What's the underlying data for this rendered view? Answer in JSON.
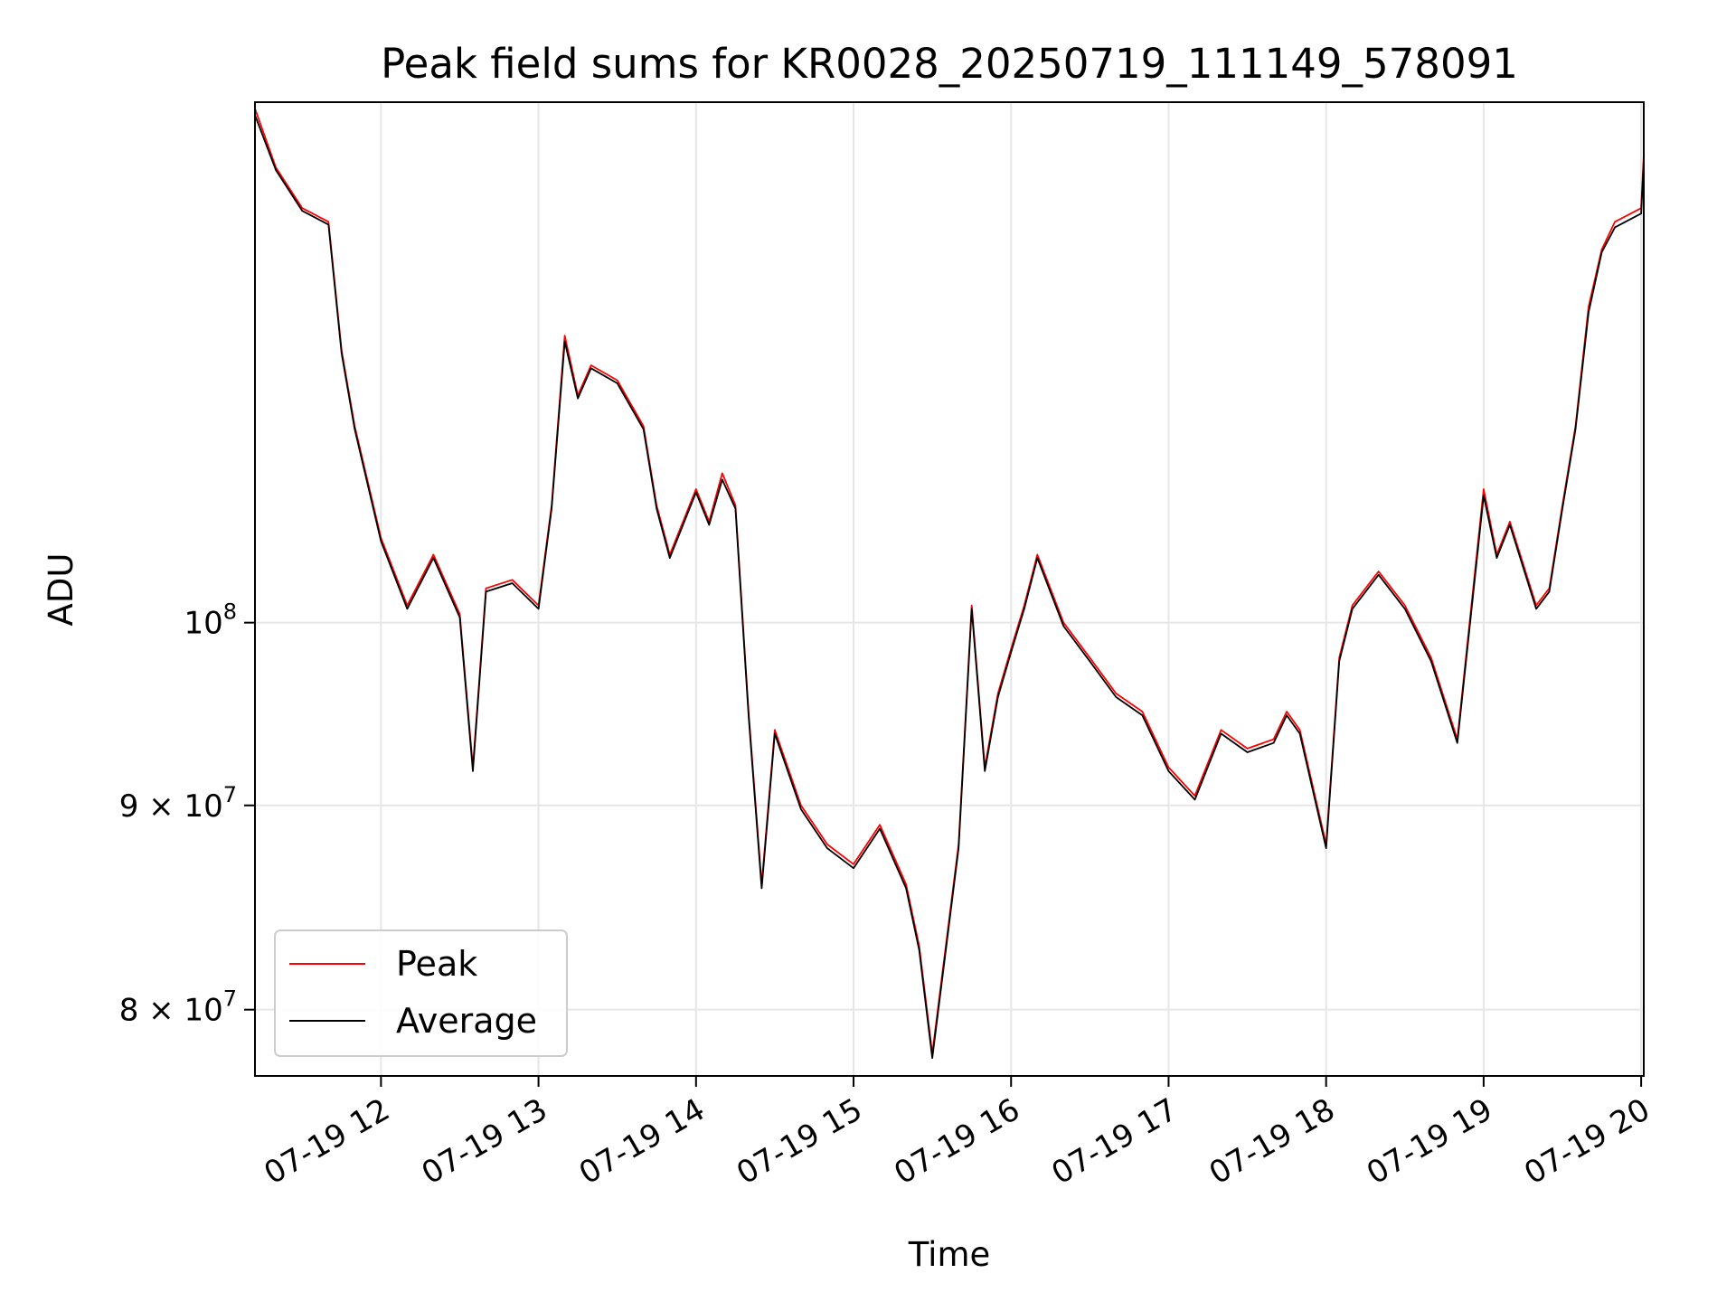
{
  "chart_data": {
    "type": "line",
    "title": "Peak field sums for KR0028_20250719_111149_578091",
    "xlabel": "Time",
    "ylabel": "ADU",
    "x_range": [
      "2025-07-19 11:12",
      "2025-07-19 20:01"
    ],
    "ylim": [
      77000000,
      135000000
    ],
    "y_scale": "log",
    "grid": true,
    "legend_position": "lower-left",
    "x_ticks": [
      "07-19 12",
      "07-19 13",
      "07-19 14",
      "07-19 15",
      "07-19 16",
      "07-19 17",
      "07-19 18",
      "07-19 19",
      "07-19 20"
    ],
    "y_ticks": [
      {
        "value": 80000000,
        "mantissa": "8",
        "exp": "7"
      },
      {
        "value": 90000000,
        "mantissa": "9",
        "exp": "7"
      },
      {
        "value": 100000000,
        "mantissa": "",
        "exp": "8"
      }
    ],
    "x": [
      "11:12",
      "11:20",
      "11:30",
      "11:40",
      "11:45",
      "11:50",
      "12:00",
      "12:10",
      "12:20",
      "12:30",
      "12:35",
      "12:40",
      "12:50",
      "13:00",
      "13:05",
      "13:10",
      "13:15",
      "13:20",
      "13:30",
      "13:40",
      "13:45",
      "13:50",
      "14:00",
      "14:05",
      "14:10",
      "14:15",
      "14:20",
      "14:25",
      "14:30",
      "14:40",
      "14:50",
      "15:00",
      "15:10",
      "15:20",
      "15:25",
      "15:30",
      "15:40",
      "15:45",
      "15:50",
      "15:55",
      "16:00",
      "16:05",
      "16:10",
      "16:20",
      "16:30",
      "16:40",
      "16:50",
      "17:00",
      "17:10",
      "17:20",
      "17:30",
      "17:40",
      "17:45",
      "17:50",
      "18:00",
      "18:05",
      "18:10",
      "18:20",
      "18:30",
      "18:40",
      "18:50",
      "19:00",
      "19:05",
      "19:10",
      "19:20",
      "19:25",
      "19:30",
      "19:35",
      "19:40",
      "19:45",
      "19:50",
      "20:00",
      "20:01"
    ],
    "series": [
      {
        "name": "Peak",
        "color": "#ff0000",
        "values": [
          134500000,
          130000000,
          127000000,
          126000000,
          117000000,
          112000000,
          105000000,
          101000000,
          104000000,
          100500000,
          92000000,
          102000000,
          102500000,
          101000000,
          107000000,
          118000000,
          114000000,
          116000000,
          115000000,
          112000000,
          107000000,
          104000000,
          108000000,
          106000000,
          109000000,
          107000000,
          95000000,
          86000000,
          94000000,
          90000000,
          88000000,
          87000000,
          89000000,
          86000000,
          83000000,
          78000000,
          88000000,
          101000000,
          92000000,
          96000000,
          98500000,
          101000000,
          104000000,
          100000000,
          98000000,
          96000000,
          95000000,
          92000000,
          90500000,
          94000000,
          93000000,
          93500000,
          95000000,
          94000000,
          88000000,
          98000000,
          101000000,
          103000000,
          101000000,
          98000000,
          93500000,
          108000000,
          104000000,
          106000000,
          101000000,
          102000000,
          107000000,
          112000000,
          120000000,
          124000000,
          126000000,
          127000000,
          131000000
        ]
      },
      {
        "name": "Average",
        "color": "#000000",
        "values": [
          134000000,
          129800000,
          126800000,
          125800000,
          116800000,
          111800000,
          104800000,
          100800000,
          103800000,
          100300000,
          91800000,
          101800000,
          102300000,
          100800000,
          106800000,
          117600000,
          113800000,
          115800000,
          114800000,
          111800000,
          106800000,
          103800000,
          107800000,
          105800000,
          108600000,
          106800000,
          94800000,
          85800000,
          93800000,
          89800000,
          87800000,
          86800000,
          88800000,
          85800000,
          82800000,
          77800000,
          87800000,
          100800000,
          91800000,
          95800000,
          98300000,
          100800000,
          103800000,
          99800000,
          97800000,
          95800000,
          94800000,
          91800000,
          90300000,
          93800000,
          92800000,
          93300000,
          94800000,
          93800000,
          87800000,
          97800000,
          100800000,
          102800000,
          100800000,
          97800000,
          93300000,
          107600000,
          103800000,
          105800000,
          100800000,
          101800000,
          106800000,
          111800000,
          119600000,
          123800000,
          125600000,
          126600000,
          130600000
        ]
      }
    ]
  }
}
